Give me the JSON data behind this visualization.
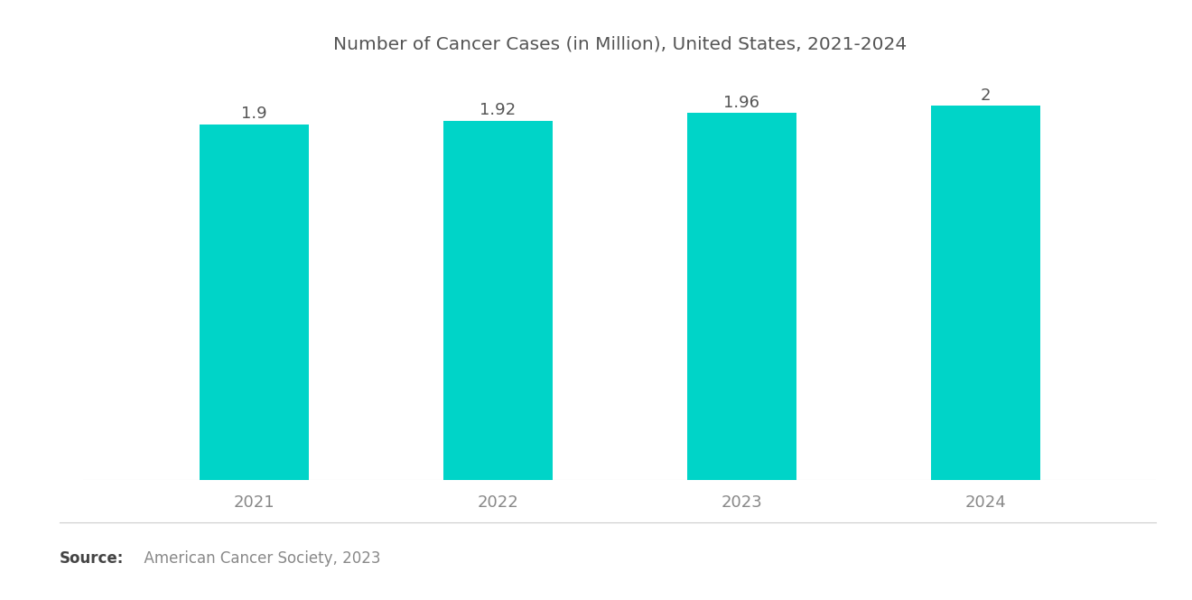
{
  "title": "Number of Cancer Cases (in Million), United States, 2021-2024",
  "categories": [
    "2021",
    "2022",
    "2023",
    "2024"
  ],
  "values": [
    1.9,
    1.92,
    1.96,
    2.0
  ],
  "value_labels": [
    "1.9",
    "1.92",
    "1.96",
    "2"
  ],
  "bar_color": "#00D4C8",
  "background_color": "#ffffff",
  "title_color": "#555555",
  "label_color": "#555555",
  "tick_color": "#888888",
  "source_bold": "Source:",
  "source_text": "  American Cancer Society, 2023",
  "ylim": [
    0,
    2.18
  ],
  "bar_width": 0.45,
  "title_fontsize": 14.5,
  "label_fontsize": 13,
  "tick_fontsize": 13,
  "source_fontsize": 12
}
